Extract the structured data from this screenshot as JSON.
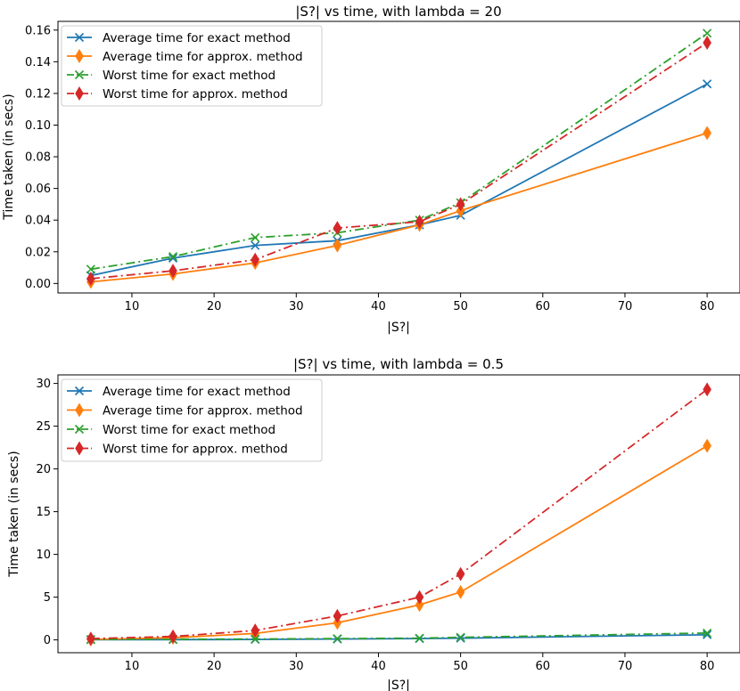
{
  "chart_data": [
    {
      "type": "line",
      "title": "|S?| vs time, with lambda = 20",
      "xlabel": "|S?|",
      "ylabel": "Time taken (in secs)",
      "x": [
        5,
        15,
        25,
        35,
        45,
        50,
        80
      ],
      "xlim": [
        1,
        84
      ],
      "ylim": [
        -0.006,
        0.1655
      ],
      "xticks": [
        10,
        20,
        30,
        40,
        50,
        60,
        70,
        80
      ],
      "xtick_labels": [
        "10",
        "20",
        "30",
        "40",
        "50",
        "60",
        "70",
        "80"
      ],
      "yticks": [
        0.0,
        0.02,
        0.04,
        0.06,
        0.08,
        0.1,
        0.12,
        0.14,
        0.16
      ],
      "ytick_labels": [
        "0.00",
        "0.02",
        "0.04",
        "0.06",
        "0.08",
        "0.10",
        "0.12",
        "0.14",
        "0.16"
      ],
      "legend_position": "top-left",
      "series": [
        {
          "name": "Average time for exact method",
          "color": "#1f77b4",
          "linestyle": "solid",
          "marker": "x",
          "values": [
            0.005,
            0.016,
            0.024,
            0.027,
            0.037,
            0.043,
            0.126
          ]
        },
        {
          "name": "Average time for approx. method",
          "color": "#ff7f0e",
          "linestyle": "solid",
          "marker": "diamond",
          "values": [
            0.001,
            0.006,
            0.013,
            0.024,
            0.037,
            0.046,
            0.095
          ]
        },
        {
          "name": "Worst time for exact method",
          "color": "#2ca02c",
          "linestyle": "dashdot",
          "marker": "x",
          "values": [
            0.009,
            0.017,
            0.029,
            0.032,
            0.04,
            0.051,
            0.158
          ]
        },
        {
          "name": "Worst time for approx. method",
          "color": "#d62728",
          "linestyle": "dashdot",
          "marker": "diamond",
          "values": [
            0.003,
            0.008,
            0.015,
            0.035,
            0.039,
            0.05,
            0.152
          ]
        }
      ]
    },
    {
      "type": "line",
      "title": "|S?| vs time, with lambda = 0.5",
      "xlabel": "|S?|",
      "ylabel": "Time taken (in secs)",
      "x": [
        5,
        15,
        25,
        35,
        45,
        50,
        80
      ],
      "xlim": [
        1,
        84
      ],
      "ylim": [
        -1.5,
        31.0
      ],
      "xticks": [
        10,
        20,
        30,
        40,
        50,
        60,
        70,
        80
      ],
      "xtick_labels": [
        "10",
        "20",
        "30",
        "40",
        "50",
        "60",
        "70",
        "80"
      ],
      "yticks": [
        0,
        5,
        10,
        15,
        20,
        25,
        30
      ],
      "ytick_labels": [
        "0",
        "5",
        "10",
        "15",
        "20",
        "25",
        "30"
      ],
      "legend_position": "top-left",
      "series": [
        {
          "name": "Average time for exact method",
          "color": "#1f77b4",
          "linestyle": "solid",
          "marker": "x",
          "values": [
            0.02,
            0.03,
            0.05,
            0.1,
            0.15,
            0.2,
            0.6
          ]
        },
        {
          "name": "Average time for approx. method",
          "color": "#ff7f0e",
          "linestyle": "solid",
          "marker": "diamond",
          "values": [
            0.05,
            0.25,
            0.75,
            2.0,
            4.1,
            5.6,
            22.7
          ]
        },
        {
          "name": "Worst time for exact method",
          "color": "#2ca02c",
          "linestyle": "dashdot",
          "marker": "x",
          "values": [
            0.05,
            0.06,
            0.1,
            0.15,
            0.2,
            0.3,
            0.8
          ]
        },
        {
          "name": "Worst time for approx. method",
          "color": "#d62728",
          "linestyle": "dashdot",
          "marker": "diamond",
          "values": [
            0.15,
            0.4,
            1.1,
            2.8,
            5.0,
            7.7,
            29.3
          ]
        }
      ]
    }
  ]
}
